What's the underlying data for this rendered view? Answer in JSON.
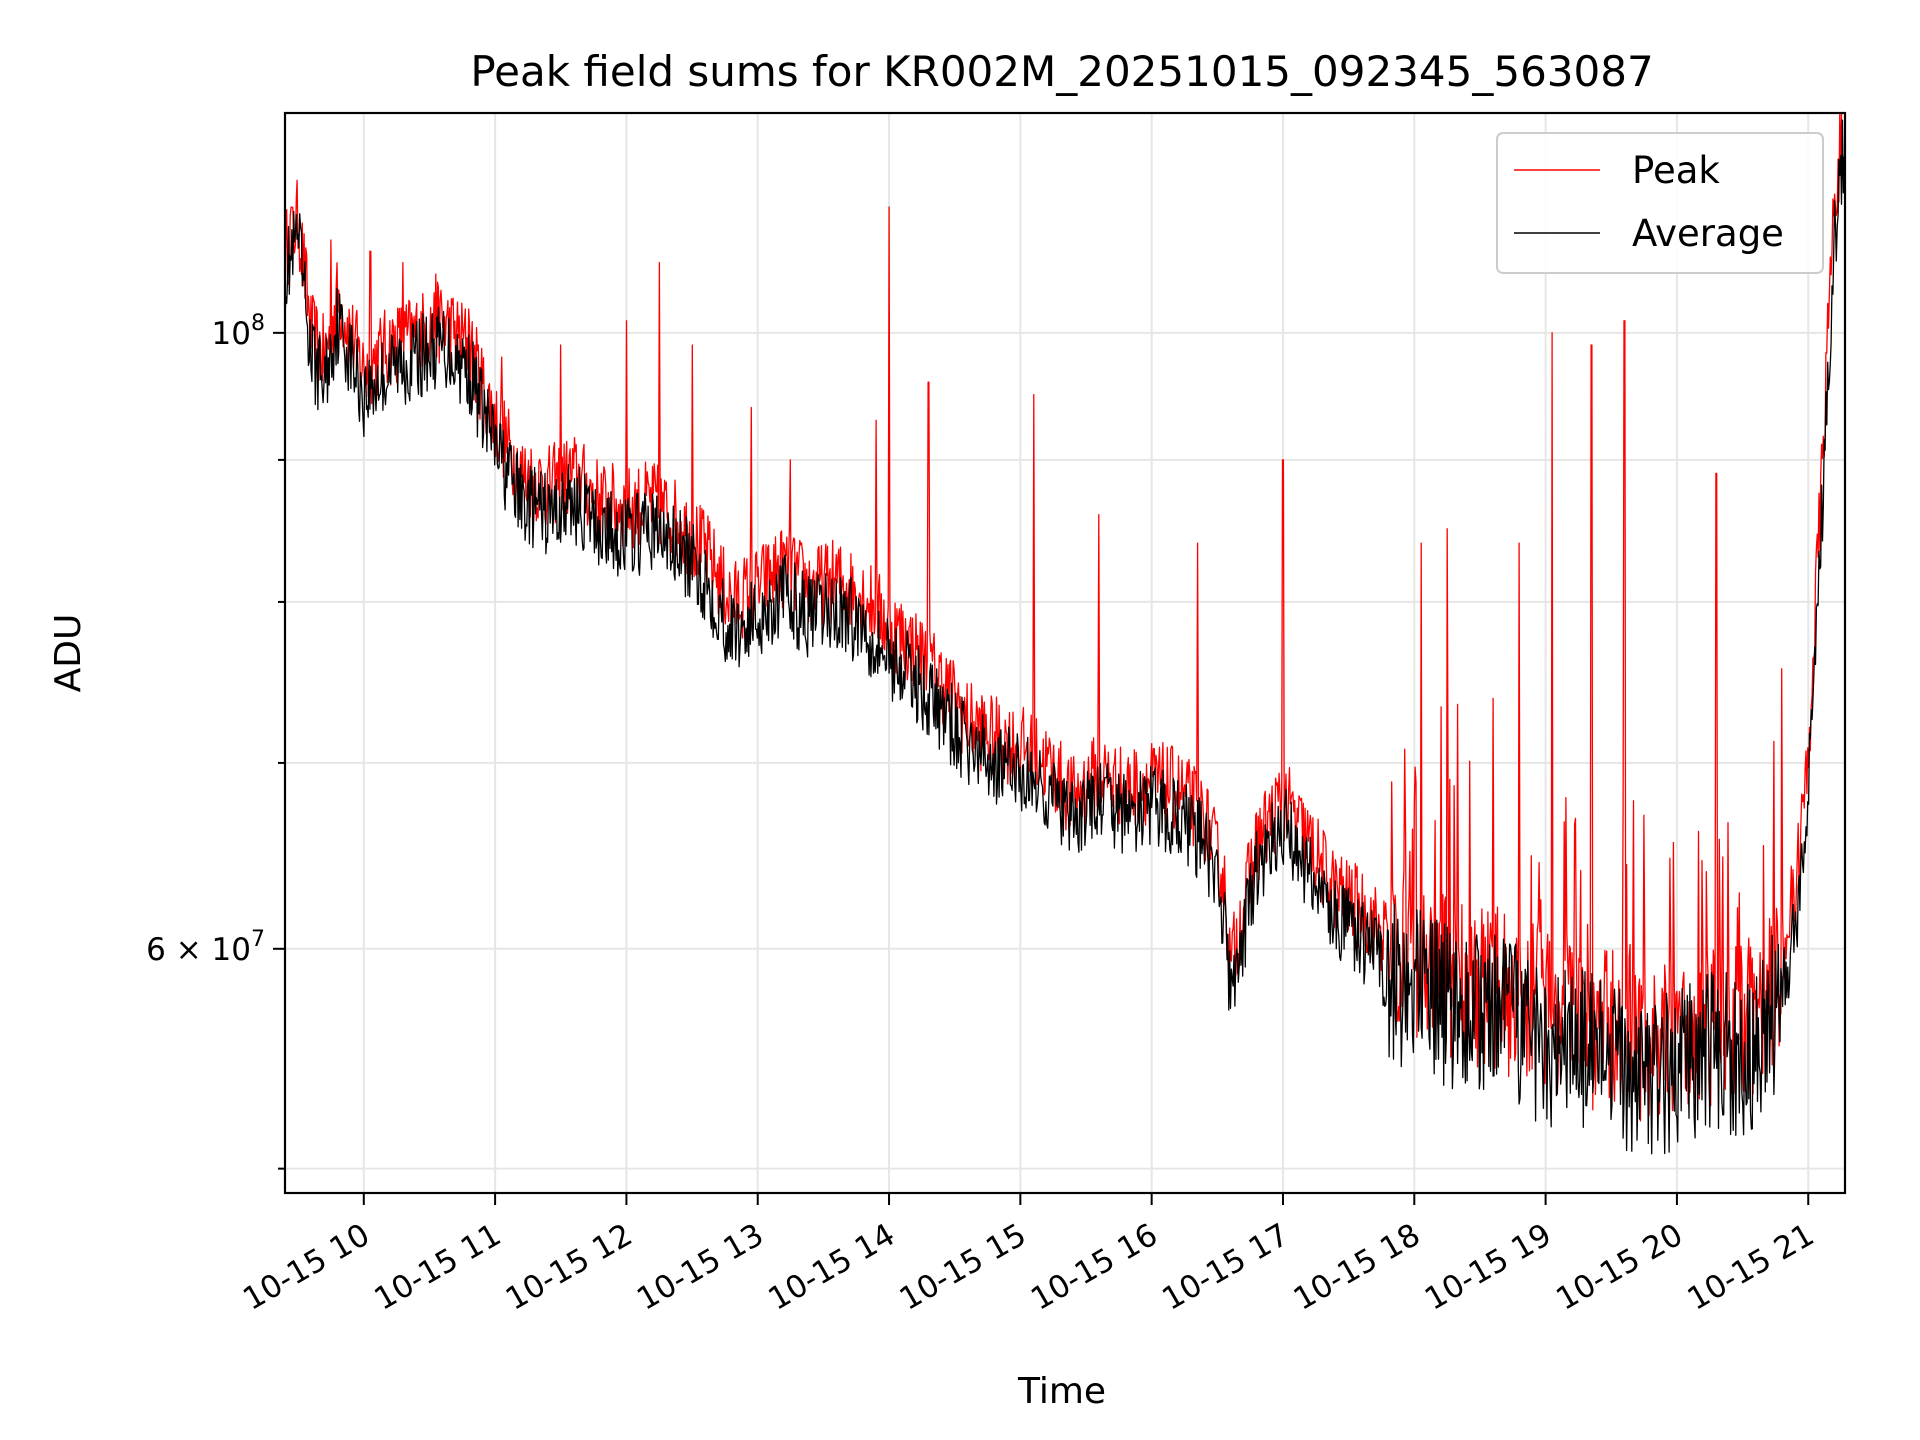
{
  "chart_data": {
    "type": "line",
    "title": "Peak field sums for KR002M_20251015_092345_563087",
    "xlabel": "Time",
    "ylabel": "ADU",
    "yscale": "log",
    "xlim": [
      9.4,
      21.28
    ],
    "ylim": [
      49000000,
      120000000
    ],
    "x_ticks": [
      {
        "value": 10,
        "label": "10-15 10"
      },
      {
        "value": 11,
        "label": "10-15 11"
      },
      {
        "value": 12,
        "label": "10-15 12"
      },
      {
        "value": 13,
        "label": "10-15 13"
      },
      {
        "value": 14,
        "label": "10-15 14"
      },
      {
        "value": 15,
        "label": "10-15 15"
      },
      {
        "value": 16,
        "label": "10-15 16"
      },
      {
        "value": 17,
        "label": "10-15 17"
      },
      {
        "value": 18,
        "label": "10-15 18"
      },
      {
        "value": 19,
        "label": "10-15 19"
      },
      {
        "value": 20,
        "label": "10-15 20"
      },
      {
        "value": 21,
        "label": "10-15 21"
      }
    ],
    "y_major_ticks": [
      {
        "value": 60000000,
        "mantissa": "6",
        "base": "10",
        "exp": "7"
      },
      {
        "value": 100000000,
        "mantissa": "",
        "base": "10",
        "exp": "8"
      }
    ],
    "y_minor_ticks": [
      50000000,
      70000000,
      80000000,
      90000000
    ],
    "grid": true,
    "legend": {
      "position": "top-right",
      "entries": [
        "Peak",
        "Average"
      ]
    },
    "colors": {
      "peak": "#ff0000",
      "average": "#000000",
      "grid": "#e6e6e6"
    },
    "series": [
      {
        "name": "Average",
        "color": "#000000",
        "points": [
          [
            9.4,
            105000000
          ],
          [
            9.5,
            108000000
          ],
          [
            9.6,
            98000000
          ],
          [
            9.7,
            96000000
          ],
          [
            9.8,
            101000000
          ],
          [
            10.0,
            95000000
          ],
          [
            10.2,
            97000000
          ],
          [
            10.4,
            98000000
          ],
          [
            10.6,
            99000000
          ],
          [
            10.8,
            97000000
          ],
          [
            11.0,
            91000000
          ],
          [
            11.2,
            87000000
          ],
          [
            11.4,
            86000000
          ],
          [
            11.6,
            87000000
          ],
          [
            11.8,
            85000000
          ],
          [
            12.0,
            84500000
          ],
          [
            12.2,
            85000000
          ],
          [
            12.4,
            83500000
          ],
          [
            12.6,
            81500000
          ],
          [
            12.8,
            78000000
          ],
          [
            13.0,
            79000000
          ],
          [
            13.2,
            80500000
          ],
          [
            13.4,
            79000000
          ],
          [
            13.6,
            79500000
          ],
          [
            13.8,
            78500000
          ],
          [
            14.0,
            76500000
          ],
          [
            14.2,
            75000000
          ],
          [
            14.4,
            73000000
          ],
          [
            14.6,
            71000000
          ],
          [
            14.8,
            70000000
          ],
          [
            15.0,
            69500000
          ],
          [
            15.2,
            68500000
          ],
          [
            15.4,
            66500000
          ],
          [
            15.6,
            68000000
          ],
          [
            15.8,
            67000000
          ],
          [
            16.0,
            67500000
          ],
          [
            16.2,
            67000000
          ],
          [
            16.4,
            65500000
          ],
          [
            16.55,
            62000000
          ],
          [
            16.6,
            57500000
          ],
          [
            16.8,
            64000000
          ],
          [
            17.0,
            66500000
          ],
          [
            17.2,
            64000000
          ],
          [
            17.4,
            61500000
          ],
          [
            17.6,
            60500000
          ],
          [
            17.8,
            59000000
          ],
          [
            18.0,
            58000000
          ],
          [
            18.2,
            57500000
          ],
          [
            18.4,
            57000000
          ],
          [
            18.6,
            56800000
          ],
          [
            18.8,
            56300000
          ],
          [
            19.0,
            55700000
          ],
          [
            19.2,
            55500000
          ],
          [
            19.4,
            54800000
          ],
          [
            19.6,
            54500000
          ],
          [
            19.8,
            53800000
          ],
          [
            20.0,
            54300000
          ],
          [
            20.2,
            55000000
          ],
          [
            20.4,
            55000000
          ],
          [
            20.6,
            55200000
          ],
          [
            20.75,
            57000000
          ],
          [
            20.9,
            61000000
          ],
          [
            21.0,
            68000000
          ],
          [
            21.1,
            85000000
          ],
          [
            21.2,
            108000000
          ],
          [
            21.28,
            118000000
          ]
        ]
      },
      {
        "name": "Peak",
        "color": "#ff0000",
        "points": [
          [
            9.4,
            107000000
          ],
          [
            9.5,
            110000000
          ],
          [
            9.6,
            100000000
          ],
          [
            9.7,
            98000000
          ],
          [
            9.8,
            103000000
          ],
          [
            10.0,
            97000000
          ],
          [
            10.2,
            99000000
          ],
          [
            10.4,
            100000000
          ],
          [
            10.6,
            101000000
          ],
          [
            10.8,
            99000000
          ],
          [
            11.0,
            93000000
          ],
          [
            11.2,
            89000000
          ],
          [
            11.4,
            88000000
          ],
          [
            11.6,
            89000000
          ],
          [
            11.8,
            87000000
          ],
          [
            12.0,
            86500000
          ],
          [
            12.2,
            87000000
          ],
          [
            12.4,
            85500000
          ],
          [
            12.6,
            83500000
          ],
          [
            12.8,
            80000000
          ],
          [
            13.0,
            81000000
          ],
          [
            13.2,
            82500000
          ],
          [
            13.4,
            81000000
          ],
          [
            13.6,
            81500000
          ],
          [
            13.8,
            80500000
          ],
          [
            14.0,
            78500000
          ],
          [
            14.2,
            77000000
          ],
          [
            14.4,
            75000000
          ],
          [
            14.6,
            72500000
          ],
          [
            14.8,
            71500000
          ],
          [
            15.0,
            71000000
          ],
          [
            15.2,
            70000000
          ],
          [
            15.4,
            68000000
          ],
          [
            15.6,
            69500000
          ],
          [
            15.8,
            68500000
          ],
          [
            16.0,
            69000000
          ],
          [
            16.2,
            68500000
          ],
          [
            16.4,
            67000000
          ],
          [
            16.55,
            63500000
          ],
          [
            16.6,
            59000000
          ],
          [
            16.8,
            65500000
          ],
          [
            17.0,
            68000000
          ],
          [
            17.2,
            65500000
          ],
          [
            17.4,
            63000000
          ],
          [
            17.6,
            62000000
          ],
          [
            17.8,
            60500000
          ],
          [
            18.0,
            59500000
          ],
          [
            18.2,
            59000000
          ],
          [
            18.4,
            58500000
          ],
          [
            18.6,
            58300000
          ],
          [
            18.8,
            57800000
          ],
          [
            19.0,
            57200000
          ],
          [
            19.2,
            57000000
          ],
          [
            19.4,
            56300000
          ],
          [
            19.6,
            56000000
          ],
          [
            19.8,
            55300000
          ],
          [
            20.0,
            55800000
          ],
          [
            20.2,
            56500000
          ],
          [
            20.4,
            56500000
          ],
          [
            20.6,
            56700000
          ],
          [
            20.75,
            58500000
          ],
          [
            20.9,
            63000000
          ],
          [
            21.0,
            70000000
          ],
          [
            21.1,
            88000000
          ],
          [
            21.2,
            112000000
          ],
          [
            21.28,
            120000000
          ]
        ],
        "spikes": [
          [
            9.45,
            111000000
          ],
          [
            9.75,
            108000000
          ],
          [
            10.05,
            107000000
          ],
          [
            10.3,
            106000000
          ],
          [
            10.55,
            105000000
          ],
          [
            10.8,
            102000000
          ],
          [
            11.05,
            98000000
          ],
          [
            11.5,
            99000000
          ],
          [
            12.0,
            101000000
          ],
          [
            12.25,
            106000000
          ],
          [
            12.5,
            99000000
          ],
          [
            12.95,
            94000000
          ],
          [
            13.25,
            90000000
          ],
          [
            13.9,
            93000000
          ],
          [
            14.0,
            111000000
          ],
          [
            14.3,
            96000000
          ],
          [
            15.1,
            95000000
          ],
          [
            15.6,
            86000000
          ],
          [
            16.35,
            84000000
          ],
          [
            17.0,
            90000000
          ],
          [
            18.05,
            84000000
          ],
          [
            18.25,
            85000000
          ],
          [
            18.8,
            84000000
          ],
          [
            19.05,
            100000000
          ],
          [
            19.35,
            99000000
          ],
          [
            19.6,
            101000000
          ],
          [
            20.3,
            89000000
          ]
        ]
      }
    ]
  }
}
